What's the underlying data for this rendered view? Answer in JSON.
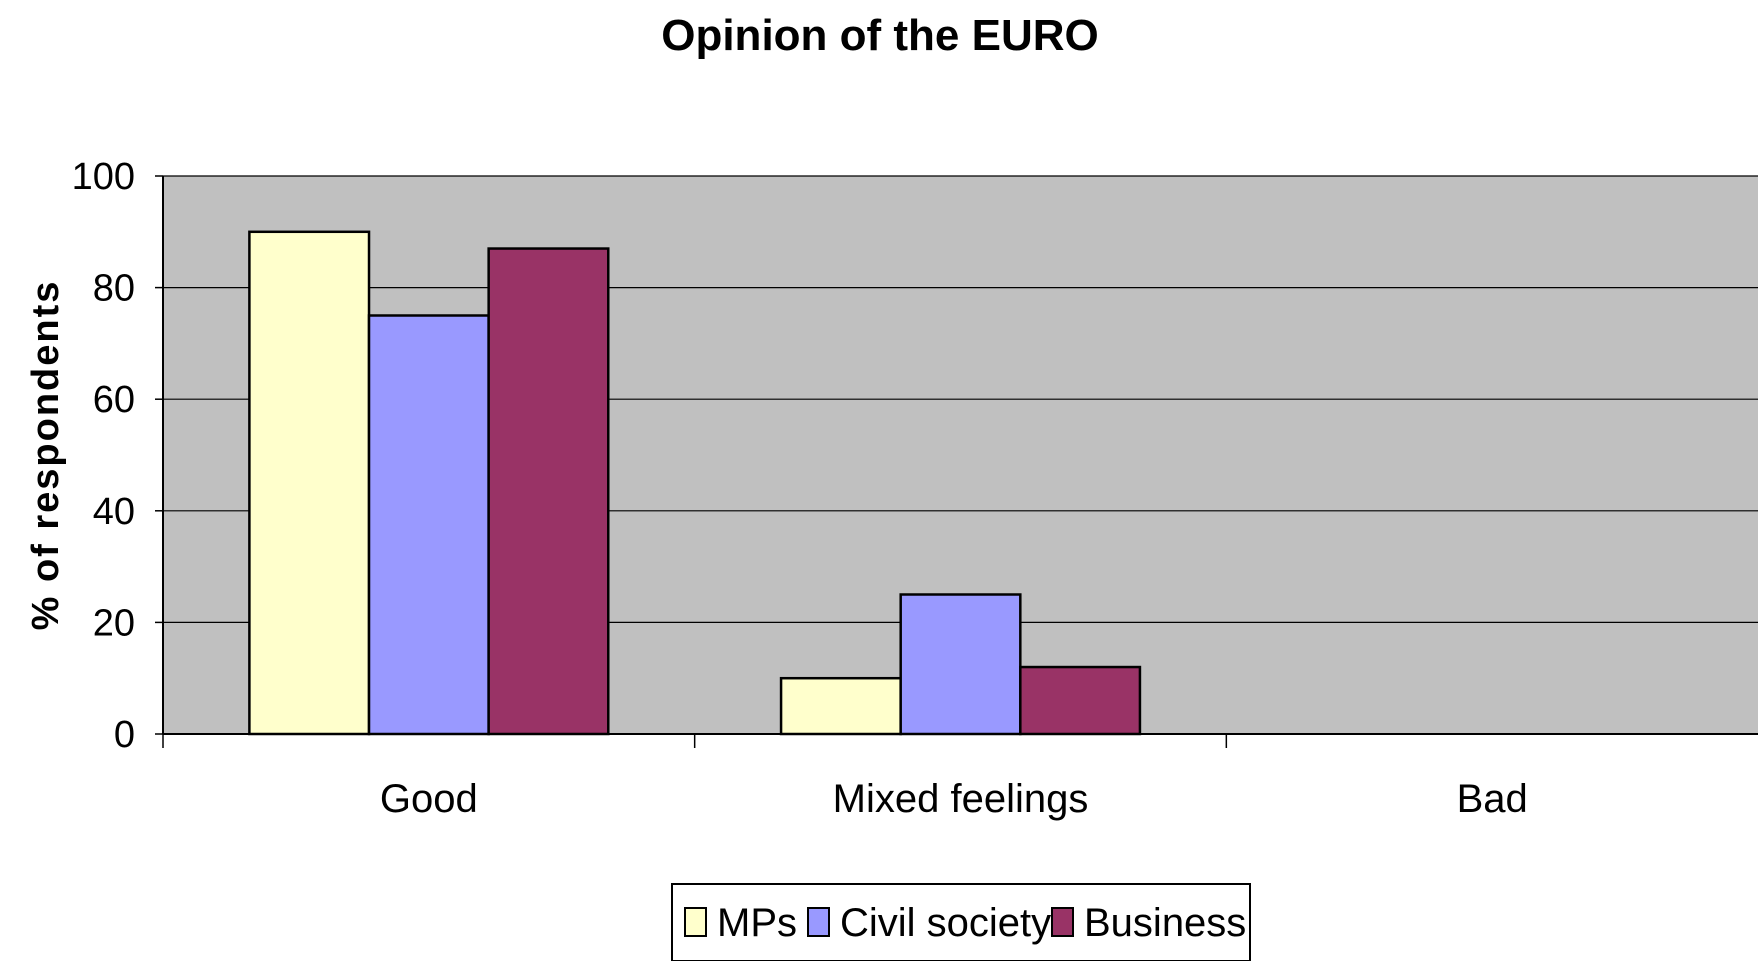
{
  "chart_data": {
    "type": "bar",
    "title": "Opinion of the EURO",
    "xlabel": "",
    "ylabel": "% of respondents",
    "categories": [
      "Good",
      "Mixed feelings",
      "Bad"
    ],
    "series": [
      {
        "name": "MPs",
        "color": "#ffffcc",
        "values": [
          90,
          10,
          0
        ]
      },
      {
        "name": "Civil society",
        "color": "#9999ff",
        "values": [
          75,
          25,
          0
        ]
      },
      {
        "name": "Business",
        "color": "#993366",
        "values": [
          87,
          12,
          0
        ]
      }
    ],
    "ylim": [
      0,
      100
    ],
    "yticks": [
      0,
      20,
      40,
      60,
      80,
      100
    ],
    "grid": true,
    "plot_background": "#c0c0c0",
    "legend_position": "bottom"
  }
}
